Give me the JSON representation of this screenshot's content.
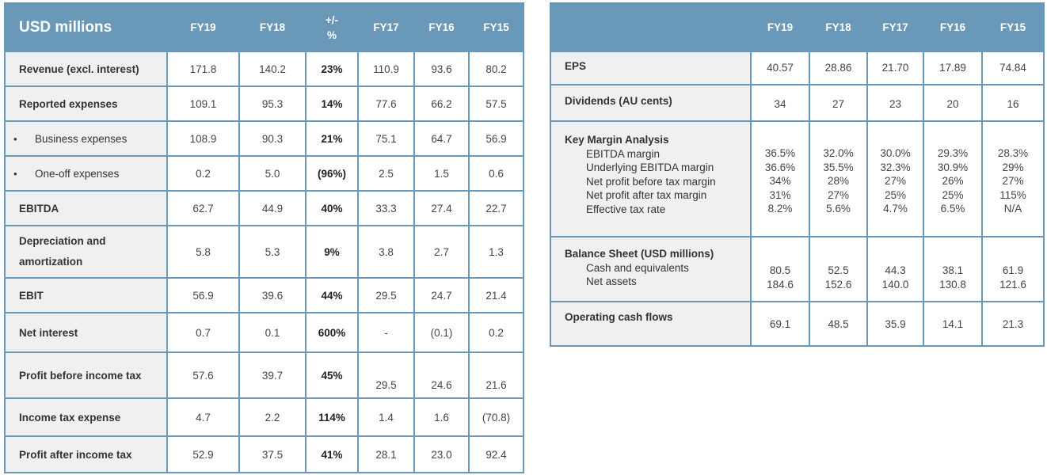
{
  "income_table": {
    "title": "USD millions",
    "columns": [
      "FY19",
      "FY18",
      "+/-",
      "%",
      "FY17",
      "FY16",
      "FY15"
    ],
    "rows": [
      {
        "label": "Revenue (excl. interest)",
        "fy19": "171.8",
        "fy18": "140.2",
        "chg": "23%",
        "fy17": "110.9",
        "fy16": "93.6",
        "fy15": "80.2"
      },
      {
        "label": "Reported expenses",
        "fy19": "109.1",
        "fy18": "95.3",
        "chg": "14%",
        "fy17": "77.6",
        "fy16": "66.2",
        "fy15": "57.5"
      },
      {
        "label": "Business expenses",
        "fy19": "108.9",
        "fy18": "90.3",
        "chg": "21%",
        "fy17": "75.1",
        "fy16": "64.7",
        "fy15": "56.9"
      },
      {
        "label": "One-off expenses",
        "fy19": "0.2",
        "fy18": "5.0",
        "chg": "(96%)",
        "fy17": "2.5",
        "fy16": "1.5",
        "fy15": "0.6"
      },
      {
        "label": "EBITDA",
        "fy19": "62.7",
        "fy18": "44.9",
        "chg": "40%",
        "fy17": "33.3",
        "fy16": "27.4",
        "fy15": "22.7"
      },
      {
        "label_line1": "Depreciation and",
        "label_line2": "amortization",
        "fy19": "5.8",
        "fy18": "5.3",
        "chg": "9%",
        "fy17": "3.8",
        "fy16": "2.7",
        "fy15": "1.3"
      },
      {
        "label": "EBIT",
        "fy19": "56.9",
        "fy18": "39.6",
        "chg": "44%",
        "fy17": "29.5",
        "fy16": "24.7",
        "fy15": "21.4"
      },
      {
        "label": "Net interest",
        "fy19": "0.7",
        "fy18": "0.1",
        "chg": "600%",
        "fy17": "-",
        "fy16": "(0.1)",
        "fy15": "0.2"
      },
      {
        "label": "Profit before income tax",
        "fy19": "57.6",
        "fy18": "39.7",
        "chg": "45%",
        "fy17": "29.5",
        "fy16": "24.6",
        "fy15": "21.6"
      },
      {
        "label": "Income tax expense",
        "fy19": "4.7",
        "fy18": "2.2",
        "chg": "114%",
        "fy17": "1.4",
        "fy16": "1.6",
        "fy15": "(70.8)"
      },
      {
        "label": "Profit after income tax",
        "fy19": "52.9",
        "fy18": "37.5",
        "chg": "41%",
        "fy17": "28.1",
        "fy16": "23.0",
        "fy15": "92.4"
      }
    ],
    "bullet": "•"
  },
  "metrics_table": {
    "columns": [
      "FY19",
      "FY18",
      "FY17",
      "FY16",
      "FY15"
    ],
    "eps": {
      "label": "EPS",
      "values": [
        "40.57",
        "28.86",
        "21.70",
        "17.89",
        "74.84"
      ]
    },
    "dividends": {
      "label": "Dividends (AU cents)",
      "values": [
        "34",
        "27",
        "23",
        "20",
        "16"
      ]
    },
    "key_margin": {
      "label": "Key Margin Analysis",
      "items": [
        "EBITDA margin",
        "Underlying EBITDA margin",
        "Net profit before tax margin",
        "Net profit after tax margin",
        "Effective tax rate"
      ],
      "fy19": [
        "36.5%",
        "36.6%",
        "34%",
        "31%",
        "8.2%"
      ],
      "fy18": [
        "32.0%",
        "35.5%",
        "28%",
        "27%",
        "5.6%"
      ],
      "fy17": [
        "30.0%",
        "32.3%",
        "27%",
        "25%",
        "4.7%"
      ],
      "fy16": [
        "29.3%",
        "30.9%",
        "26%",
        "25%",
        "6.5%"
      ],
      "fy15": [
        "28.3%",
        "29%",
        "27%",
        "115%",
        "N/A"
      ]
    },
    "balance_sheet": {
      "label": "Balance Sheet (USD millions)",
      "items": [
        "Cash and equivalents",
        "Net assets"
      ],
      "fy19": [
        "80.5",
        "184.6"
      ],
      "fy18": [
        "52.5",
        "152.6"
      ],
      "fy17": [
        "44.3",
        "140.0"
      ],
      "fy16": [
        "38.1",
        "130.8"
      ],
      "fy15": [
        "61.9",
        "121.6"
      ]
    },
    "operating_cash": {
      "label": "Operating cash flows",
      "values": [
        "69.1",
        "48.5",
        "35.9",
        "14.1",
        "21.3"
      ]
    }
  }
}
